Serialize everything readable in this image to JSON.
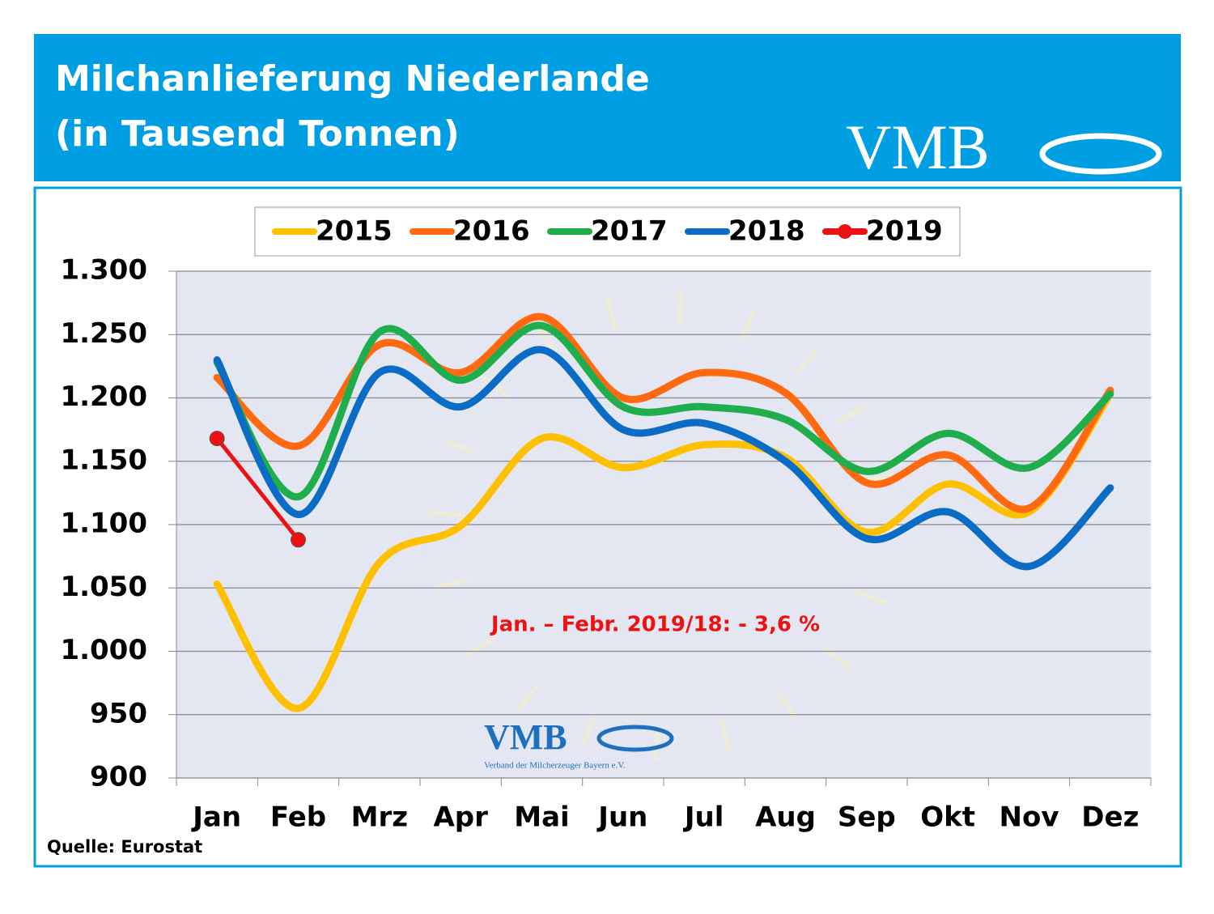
{
  "chart_data": {
    "type": "line",
    "title": "Milchanlieferung Niederlande",
    "subtitle": "(in Tausend Tonnen)",
    "logo": "VMB",
    "watermark_caption": "Verband der Milcherzeuger Bayern e.V.",
    "annotation": "Jan. – Febr. 2019/18:  - 3,6 %",
    "source": "Quelle: Eurostat",
    "categories": [
      "Jan",
      "Feb",
      "Mrz",
      "Apr",
      "Mai",
      "Jun",
      "Jul",
      "Aug",
      "Sep",
      "Okt",
      "Nov",
      "Dez"
    ],
    "series": [
      {
        "name": "2015",
        "color": "#ffc000",
        "values": [
          1053,
          955,
          1070,
          1099,
          1168,
          1145,
          1163,
          1153,
          1094,
          1132,
          1110,
          1203
        ]
      },
      {
        "name": "2016",
        "color": "#ff6a10",
        "values": [
          1216,
          1162,
          1242,
          1220,
          1264,
          1200,
          1220,
          1204,
          1133,
          1155,
          1113,
          1206
        ]
      },
      {
        "name": "2017",
        "color": "#1fae4b",
        "values": [
          1228,
          1122,
          1252,
          1214,
          1257,
          1193,
          1193,
          1183,
          1142,
          1172,
          1145,
          1203
        ]
      },
      {
        "name": "2018",
        "color": "#0a6cc4",
        "values": [
          1230,
          1108,
          1220,
          1193,
          1238,
          1175,
          1180,
          1150,
          1089,
          1110,
          1067,
          1129
        ]
      },
      {
        "name": "2019",
        "color": "#ee1111",
        "markers": true,
        "values": [
          1168,
          1088,
          null,
          null,
          null,
          null,
          null,
          null,
          null,
          null,
          null,
          null
        ]
      }
    ],
    "ylim": [
      900,
      1300
    ],
    "yticks": [
      {
        "value": 900,
        "label": "900"
      },
      950,
      {
        "value": 1000,
        "label": "1.000"
      },
      {
        "value": 1050,
        "label": "1.050"
      },
      {
        "value": 1100,
        "label": "1.100"
      },
      {
        "value": 1150,
        "label": "1.150"
      },
      {
        "value": 1200,
        "label": "1.200"
      },
      {
        "value": 1250,
        "label": "1.250"
      },
      {
        "value": 1300,
        "label": "1.300"
      }
    ],
    "grid": true,
    "smooth": true,
    "legend": "top"
  }
}
